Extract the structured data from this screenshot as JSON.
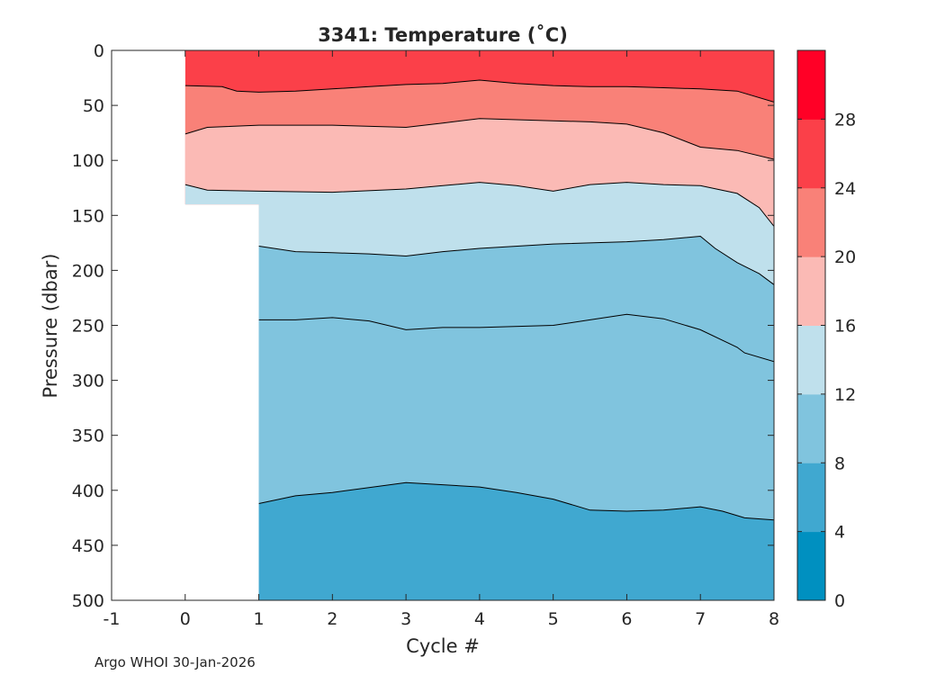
{
  "chart_data": {
    "type": "filled-contour",
    "title": "3341:  Temperature (˚C)",
    "xlabel": "Cycle #",
    "ylabel": "Pressure (dbar)",
    "footer": "Argo WHOI 30-Jan-2026",
    "xlim": [
      -1,
      8
    ],
    "ylim": [
      0,
      500
    ],
    "y_reversed": true,
    "xticks": [
      -1,
      0,
      1,
      2,
      3,
      4,
      5,
      6,
      7,
      8
    ],
    "yticks": [
      0,
      50,
      100,
      150,
      200,
      250,
      300,
      350,
      400,
      450,
      500
    ],
    "data_extent": {
      "x_start": 0,
      "x_end": 8,
      "cycle0_max_pressure": 140,
      "deep_profiles_start_cycle": 1,
      "deep_max_pressure": 500
    },
    "colorbar": {
      "ticks": [
        0,
        4,
        8,
        12,
        16,
        20,
        24,
        28
      ],
      "range": [
        0,
        32
      ],
      "bins": [
        {
          "min": 0,
          "max": 4,
          "color": "#0090c0"
        },
        {
          "min": 4,
          "max": 8,
          "color": "#40a8d0"
        },
        {
          "min": 8,
          "max": 12,
          "color": "#80c4de"
        },
        {
          "min": 12,
          "max": 16,
          "color": "#bfe0ec"
        },
        {
          "min": 16,
          "max": 20,
          "color": "#fbbab5"
        },
        {
          "min": 20,
          "max": 24,
          "color": "#f98178"
        },
        {
          "min": 24,
          "max": 28,
          "color": "#fb4049"
        },
        {
          "min": 28,
          "max": 32,
          "color": "#ff0026"
        }
      ]
    },
    "isotherms": [
      {
        "temperature": 24,
        "points": [
          [
            0,
            32
          ],
          [
            0.5,
            33
          ],
          [
            0.7,
            37
          ],
          [
            1,
            38
          ],
          [
            1.5,
            37
          ],
          [
            2,
            35
          ],
          [
            2.5,
            33
          ],
          [
            3,
            31
          ],
          [
            3.5,
            30
          ],
          [
            4,
            27
          ],
          [
            4.5,
            30
          ],
          [
            5,
            32
          ],
          [
            5.5,
            33
          ],
          [
            6,
            33
          ],
          [
            6.5,
            34
          ],
          [
            7,
            35
          ],
          [
            7.5,
            37
          ],
          [
            8,
            47
          ]
        ]
      },
      {
        "temperature": 20,
        "points": [
          [
            0,
            76
          ],
          [
            0.3,
            70
          ],
          [
            1,
            68
          ],
          [
            2,
            68
          ],
          [
            3,
            70
          ],
          [
            3.5,
            66
          ],
          [
            4,
            62
          ],
          [
            5,
            64
          ],
          [
            5.5,
            65
          ],
          [
            6,
            67
          ],
          [
            6.5,
            75
          ],
          [
            7,
            88
          ],
          [
            7.5,
            91
          ],
          [
            8,
            99
          ]
        ]
      },
      {
        "temperature": 16,
        "points": [
          [
            0,
            122
          ],
          [
            0.3,
            127
          ],
          [
            1,
            128
          ],
          [
            2,
            129
          ],
          [
            3,
            126
          ],
          [
            3.5,
            123
          ],
          [
            4,
            120
          ],
          [
            4.5,
            123
          ],
          [
            5,
            128
          ],
          [
            5.5,
            122
          ],
          [
            6,
            120
          ],
          [
            6.5,
            122
          ],
          [
            7,
            123
          ],
          [
            7.5,
            130
          ],
          [
            7.8,
            143
          ],
          [
            8,
            160
          ]
        ]
      },
      {
        "temperature": 12,
        "points": [
          [
            1,
            178
          ],
          [
            1.5,
            183
          ],
          [
            2,
            184
          ],
          [
            2.5,
            185
          ],
          [
            3,
            187
          ],
          [
            3.5,
            183
          ],
          [
            4,
            180
          ],
          [
            5,
            176
          ],
          [
            6,
            174
          ],
          [
            6.5,
            172
          ],
          [
            7,
            169
          ],
          [
            7.2,
            180
          ],
          [
            7.5,
            193
          ],
          [
            7.8,
            203
          ],
          [
            8,
            213
          ]
        ]
      },
      {
        "temperature": 10,
        "points": [
          [
            1,
            245
          ],
          [
            1.5,
            245
          ],
          [
            2,
            243
          ],
          [
            2.5,
            246
          ],
          [
            3,
            254
          ],
          [
            3.5,
            252
          ],
          [
            4,
            252
          ],
          [
            5,
            250
          ],
          [
            5.5,
            245
          ],
          [
            6,
            240
          ],
          [
            6.5,
            244
          ],
          [
            7,
            254
          ],
          [
            7.5,
            270
          ],
          [
            7.6,
            275
          ],
          [
            8,
            283
          ]
        ]
      },
      {
        "temperature": 8,
        "points": [
          [
            1,
            412
          ],
          [
            1.5,
            405
          ],
          [
            2,
            402
          ],
          [
            3,
            393
          ],
          [
            4,
            397
          ],
          [
            4.5,
            402
          ],
          [
            5,
            408
          ],
          [
            5.5,
            418
          ],
          [
            6,
            419
          ],
          [
            6.5,
            418
          ],
          [
            7,
            415
          ],
          [
            7.3,
            419
          ],
          [
            7.6,
            425
          ],
          [
            8,
            427
          ]
        ]
      }
    ]
  }
}
